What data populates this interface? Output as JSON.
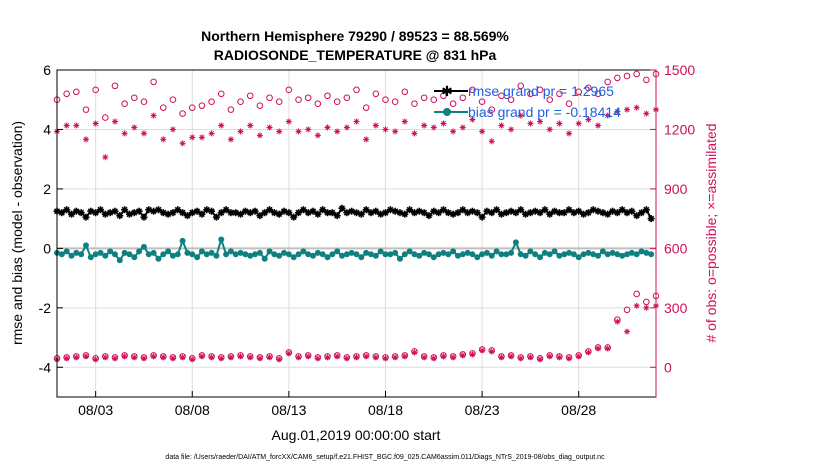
{
  "chart_data": {
    "type": "line",
    "title_line1": "Northern Hemisphere 79290 / 89523 = 88.569%",
    "title_line2": "RADIOSONDE_TEMPERATURE @ 831 hPa",
    "xlabel": "Aug.01,2019 00:00:00 start",
    "ylabel_left": "rmse and bias (model - observation)",
    "ylabel_right": "# of obs: o=possible; ×=assimilated",
    "footnote": "data file: /Users/raeder/DAI/ATM_forcXX/CAM6_setup/f.e21.FHIST_BGC.f09_025.CAM6assim.011/Diags_NTrS_2019-08/obs_diag_output.nc",
    "x_ticks": [
      {
        "day": 3,
        "label": "08/03"
      },
      {
        "day": 8,
        "label": "08/08"
      },
      {
        "day": 13,
        "label": "08/13"
      },
      {
        "day": 18,
        "label": "08/18"
      },
      {
        "day": 23,
        "label": "08/23"
      },
      {
        "day": 28,
        "label": "08/28"
      }
    ],
    "xlim": [
      1.0,
      32.0
    ],
    "ylim_left": [
      -5,
      6
    ],
    "ylim_right": [
      -150,
      1500
    ],
    "left_ticks": [
      {
        "value": -4,
        "label": "-4"
      },
      {
        "value": -2,
        "label": "-2"
      },
      {
        "value": 0,
        "label": "0"
      },
      {
        "value": 2,
        "label": "2"
      },
      {
        "value": 4,
        "label": "4"
      },
      {
        "value": 6,
        "label": "6"
      }
    ],
    "right_ticks": [
      {
        "value": 0,
        "label": "0"
      },
      {
        "value": 300,
        "label": "300"
      },
      {
        "value": 600,
        "label": "600"
      },
      {
        "value": 900,
        "label": "900"
      },
      {
        "value": 1200,
        "label": "1200"
      },
      {
        "value": 1500,
        "label": "1500"
      }
    ],
    "zero_line": 0,
    "grid": true,
    "time_step_days": 0.25,
    "series": [
      {
        "name": "rmse grand pr = 1.2965",
        "axis": "left",
        "color": "#000000",
        "marker": "star",
        "values": [
          1.25,
          1.2,
          1.3,
          1.15,
          1.25,
          1.2,
          1.05,
          1.25,
          1.2,
          1.3,
          1.15,
          1.2,
          1.25,
          1.1,
          1.3,
          1.15,
          1.2,
          1.25,
          1.05,
          1.3,
          1.25,
          1.3,
          1.2,
          1.15,
          1.2,
          1.3,
          1.2,
          1.1,
          1.2,
          1.25,
          1.15,
          1.3,
          1.25,
          1.05,
          1.2,
          1.3,
          1.2,
          1.2,
          1.15,
          1.25,
          1.2,
          1.25,
          1.1,
          1.2,
          1.3,
          1.2,
          1.15,
          1.25,
          1.2,
          1.05,
          1.2,
          1.3,
          1.2,
          1.25,
          1.15,
          1.3,
          1.2,
          1.2,
          1.1,
          1.35,
          1.2,
          1.25,
          1.2,
          1.15,
          1.3,
          1.2,
          1.25,
          1.15,
          1.2,
          1.3,
          1.25,
          1.2,
          1.15,
          1.3,
          1.2,
          1.25,
          1.2,
          1.1,
          1.25,
          1.2,
          1.3,
          1.2,
          1.15,
          1.2,
          1.3,
          1.2,
          1.25,
          1.2,
          1.05,
          1.25,
          1.2,
          1.3,
          1.15,
          1.2,
          1.25,
          1.2,
          1.3,
          1.15,
          1.2,
          1.25,
          1.2,
          1.3,
          1.15,
          1.25,
          1.2,
          1.2,
          1.3,
          1.2,
          1.25,
          1.15,
          1.2,
          1.3,
          1.25,
          1.2,
          1.15,
          1.25,
          1.2,
          1.3,
          1.2,
          1.25,
          1.1,
          1.2,
          1.3,
          1.0
        ]
      },
      {
        "name": "bias grand pr = -0.18414",
        "axis": "left",
        "color": "#0f8080",
        "marker": "circle",
        "values": [
          -0.15,
          -0.2,
          -0.1,
          -0.25,
          -0.15,
          -0.2,
          0.1,
          -0.3,
          -0.2,
          -0.15,
          -0.25,
          -0.1,
          -0.2,
          -0.4,
          -0.15,
          -0.2,
          -0.3,
          -0.1,
          0.05,
          -0.2,
          -0.15,
          -0.35,
          -0.2,
          -0.1,
          -0.25,
          -0.2,
          0.25,
          -0.15,
          -0.2,
          -0.3,
          -0.1,
          -0.2,
          -0.15,
          -0.25,
          0.3,
          -0.2,
          -0.1,
          -0.2,
          -0.15,
          -0.2,
          -0.25,
          -0.2,
          -0.15,
          -0.35,
          -0.1,
          -0.2,
          -0.25,
          -0.15,
          -0.2,
          -0.3,
          -0.2,
          -0.1,
          -0.2,
          -0.25,
          -0.15,
          -0.2,
          -0.3,
          -0.2,
          -0.1,
          -0.25,
          -0.2,
          -0.15,
          -0.2,
          -0.3,
          -0.15,
          -0.2,
          -0.25,
          -0.1,
          -0.2,
          -0.2,
          -0.15,
          -0.35,
          -0.2,
          -0.1,
          -0.2,
          -0.25,
          -0.15,
          -0.2,
          -0.3,
          -0.2,
          -0.15,
          -0.2,
          -0.1,
          -0.25,
          -0.2,
          -0.15,
          -0.2,
          -0.3,
          -0.2,
          -0.15,
          -0.25,
          -0.1,
          -0.2,
          -0.2,
          -0.15,
          0.2,
          -0.2,
          -0.25,
          -0.1,
          -0.2,
          -0.3,
          -0.15,
          -0.2,
          -0.1,
          -0.25,
          -0.2,
          -0.15,
          -0.2,
          -0.3,
          -0.2,
          -0.15,
          -0.2,
          -0.25,
          -0.1,
          -0.2,
          -0.15,
          -0.2,
          -0.25,
          -0.2,
          -0.15,
          -0.2,
          -0.1,
          -0.15,
          -0.2
        ]
      },
      {
        "name": "possible",
        "axis": "right",
        "color": "#d0105a",
        "marker": "open-circle",
        "times": [
          1.0,
          1.5,
          2.0,
          2.5,
          3.0,
          3.5,
          4.0,
          4.5,
          5.0,
          5.5,
          6.0,
          6.5,
          7.0,
          7.5,
          8.0,
          8.5,
          9.0,
          9.5,
          10.0,
          10.5,
          11.0,
          11.5,
          12.0,
          12.5,
          13.0,
          13.5,
          14.0,
          14.5,
          15.0,
          15.5,
          16.0,
          16.5,
          17.0,
          17.5,
          18.0,
          18.5,
          19.0,
          19.5,
          20.0,
          20.5,
          21.0,
          21.5,
          22.0,
          22.5,
          23.0,
          23.5,
          24.0,
          24.5,
          25.0,
          25.5,
          26.0,
          26.5,
          27.0,
          27.5,
          28.0,
          28.5,
          29.0,
          29.5,
          30.0,
          30.5,
          31.0,
          31.5,
          32.0
        ],
        "values": [
          1350,
          1380,
          1390,
          1300,
          1400,
          1260,
          1420,
          1330,
          1360,
          1340,
          1440,
          1310,
          1350,
          1280,
          1310,
          1320,
          1340,
          1380,
          1300,
          1340,
          1370,
          1320,
          1360,
          1340,
          1400,
          1350,
          1360,
          1330,
          1370,
          1340,
          1360,
          1400,
          1310,
          1380,
          1350,
          1340,
          1390,
          1330,
          1360,
          1350,
          1370,
          1330,
          1360,
          1400,
          1340,
          1300,
          1370,
          1350,
          1420,
          1380,
          1400,
          1350,
          1380,
          1330,
          1390,
          1410,
          1380,
          1440,
          1460,
          1470,
          1480,
          1450,
          1480
        ]
      },
      {
        "name": "assimilated",
        "axis": "right",
        "color": "#d0105a",
        "marker": "star",
        "times": [
          1.0,
          1.5,
          2.0,
          2.5,
          3.0,
          3.5,
          4.0,
          4.5,
          5.0,
          5.5,
          6.0,
          6.5,
          7.0,
          7.5,
          8.0,
          8.5,
          9.0,
          9.5,
          10.0,
          10.5,
          11.0,
          11.5,
          12.0,
          12.5,
          13.0,
          13.5,
          14.0,
          14.5,
          15.0,
          15.5,
          16.0,
          16.5,
          17.0,
          17.5,
          18.0,
          18.5,
          19.0,
          19.5,
          20.0,
          20.5,
          21.0,
          21.5,
          22.0,
          22.5,
          23.0,
          23.5,
          24.0,
          24.5,
          25.0,
          25.5,
          26.0,
          26.5,
          27.0,
          27.5,
          28.0,
          28.5,
          29.0,
          29.5,
          30.0,
          30.5,
          31.0,
          31.5,
          32.0
        ],
        "values": [
          1190,
          1220,
          1220,
          1150,
          1230,
          1060,
          1240,
          1180,
          1210,
          1180,
          1270,
          1150,
          1200,
          1130,
          1160,
          1160,
          1180,
          1220,
          1150,
          1190,
          1220,
          1170,
          1210,
          1190,
          1240,
          1190,
          1200,
          1170,
          1210,
          1190,
          1210,
          1240,
          1150,
          1220,
          1200,
          1190,
          1240,
          1180,
          1220,
          1210,
          1230,
          1190,
          1210,
          1250,
          1190,
          1140,
          1220,
          1200,
          1270,
          1230,
          1240,
          1200,
          1230,
          1180,
          1230,
          1250,
          1220,
          1270,
          1290,
          1300,
          1310,
          1280,
          1300
        ]
      },
      {
        "name": "possible-low",
        "axis": "right",
        "color": "#d0105a",
        "marker": "open-circle",
        "times": [
          1.0,
          1.5,
          2.0,
          2.5,
          3.0,
          3.5,
          4.0,
          4.5,
          5.0,
          5.5,
          6.0,
          6.5,
          7.0,
          7.5,
          8.0,
          8.5,
          9.0,
          9.5,
          10.0,
          10.5,
          11.0,
          11.5,
          12.0,
          12.5,
          13.0,
          13.5,
          14.0,
          14.5,
          15.0,
          15.5,
          16.0,
          16.5,
          17.0,
          17.5,
          18.0,
          18.5,
          19.0,
          19.5,
          20.0,
          20.5,
          21.0,
          21.5,
          22.0,
          22.5,
          23.0,
          23.5,
          24.0,
          24.5,
          25.0,
          25.5,
          26.0,
          26.5,
          27.0,
          27.5,
          28.0,
          28.5,
          29.0,
          29.5,
          30.0,
          30.5,
          31.0,
          31.5,
          32.0
        ],
        "values": [
          45,
          50,
          55,
          60,
          45,
          55,
          50,
          60,
          55,
          50,
          60,
          55,
          50,
          55,
          45,
          60,
          55,
          50,
          55,
          60,
          55,
          50,
          55,
          45,
          75,
          55,
          60,
          50,
          55,
          60,
          50,
          55,
          60,
          55,
          50,
          55,
          60,
          80,
          55,
          50,
          60,
          55,
          65,
          70,
          90,
          85,
          55,
          60,
          50,
          55,
          45,
          60,
          55,
          50,
          60,
          80,
          100,
          100,
          240,
          290,
          370,
          330,
          360
        ]
      },
      {
        "name": "assimilated-low",
        "axis": "right",
        "color": "#d0105a",
        "marker": "star",
        "times": [
          1.0,
          1.5,
          2.0,
          2.5,
          3.0,
          3.5,
          4.0,
          4.5,
          5.0,
          5.5,
          6.0,
          6.5,
          7.0,
          7.5,
          8.0,
          8.5,
          9.0,
          9.5,
          10.0,
          10.5,
          11.0,
          11.5,
          12.0,
          12.5,
          13.0,
          13.5,
          14.0,
          14.5,
          15.0,
          15.5,
          16.0,
          16.5,
          17.0,
          17.5,
          18.0,
          18.5,
          19.0,
          19.5,
          20.0,
          20.5,
          21.0,
          21.5,
          22.0,
          22.5,
          23.0,
          23.5,
          24.0,
          24.5,
          25.0,
          25.5,
          26.0,
          26.5,
          27.0,
          27.5,
          28.0,
          28.5,
          29.0,
          29.5,
          30.0,
          30.5,
          31.0,
          31.5,
          32.0
        ],
        "values": [
          40,
          45,
          50,
          55,
          40,
          50,
          45,
          55,
          50,
          45,
          55,
          50,
          45,
          50,
          40,
          55,
          50,
          45,
          50,
          55,
          50,
          45,
          50,
          40,
          70,
          50,
          55,
          45,
          50,
          55,
          45,
          50,
          55,
          50,
          45,
          50,
          55,
          75,
          50,
          45,
          55,
          50,
          60,
          65,
          85,
          80,
          50,
          55,
          45,
          50,
          40,
          55,
          50,
          45,
          55,
          75,
          95,
          95,
          230,
          180,
          310,
          300,
          310
        ]
      }
    ],
    "legend": {
      "placement": "top-right",
      "entries": [
        "rmse grand pr = 1.2965",
        "bias grand pr = -0.18414"
      ]
    }
  }
}
